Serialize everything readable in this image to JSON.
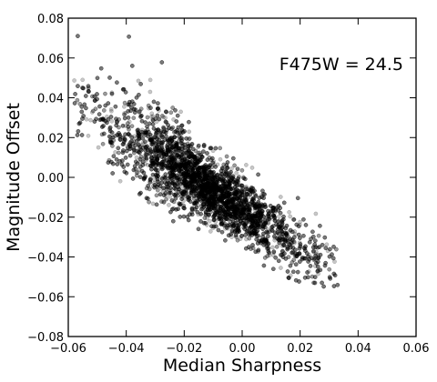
{
  "chart_data": {
    "type": "scatter",
    "title": "",
    "xlabel": "Median Sharpness",
    "ylabel": "Magnitude Offset",
    "xlim": [
      -0.06,
      0.06
    ],
    "ylim": [
      -0.08,
      0.08
    ],
    "xticks": [
      -0.06,
      -0.04,
      -0.02,
      0.0,
      0.02,
      0.04,
      0.06
    ],
    "yticks": [
      -0.08,
      -0.06,
      -0.04,
      -0.02,
      0.0,
      0.02,
      0.04,
      0.06,
      0.08
    ],
    "xtick_labels": [
      "−0.06",
      "−0.04",
      "−0.02",
      "0.00",
      "0.02",
      "0.04",
      "0.06"
    ],
    "ytick_labels": [
      "−0.08",
      "−0.06",
      "−0.04",
      "−0.02",
      "0.00",
      "0.02",
      "0.04",
      "0.06",
      "0.08"
    ],
    "annotation": "F475W = 24.5",
    "annotation_position": "top-right",
    "grid": false,
    "marker_color": "#000000",
    "marker_fill_opacity": 0.22,
    "point_count_estimate": 6000,
    "distribution": {
      "trend_slope": -0.93,
      "trend_intercept": -0.016,
      "scatter_sigma": 0.0085,
      "x_range_dense": [
        -0.045,
        0.025
      ],
      "x_range_sparse": [
        -0.058,
        0.033
      ]
    }
  }
}
